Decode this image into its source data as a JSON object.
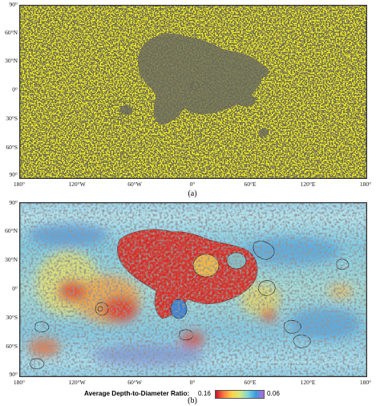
{
  "panels": {
    "a": {
      "caption": "(a)"
    },
    "b": {
      "caption": "(b)"
    }
  },
  "lat_ticks": [
    "90°",
    "60°N",
    "30°N",
    "0°",
    "30°S",
    "60°S",
    "90°"
  ],
  "lon_ticks": [
    "180°",
    "120°W",
    "60°W",
    "0°",
    "60°E",
    "120°E",
    "180°"
  ],
  "legend": {
    "title": "Average Depth-to-Diameter Ratio:",
    "min_label": "0.16",
    "max_label": "0.06",
    "colors": [
      "#c8102e",
      "#ff7b3d",
      "#ffd14a",
      "#d7e77a",
      "#7fd6d8",
      "#3b9be0",
      "#b06bd6"
    ]
  }
}
